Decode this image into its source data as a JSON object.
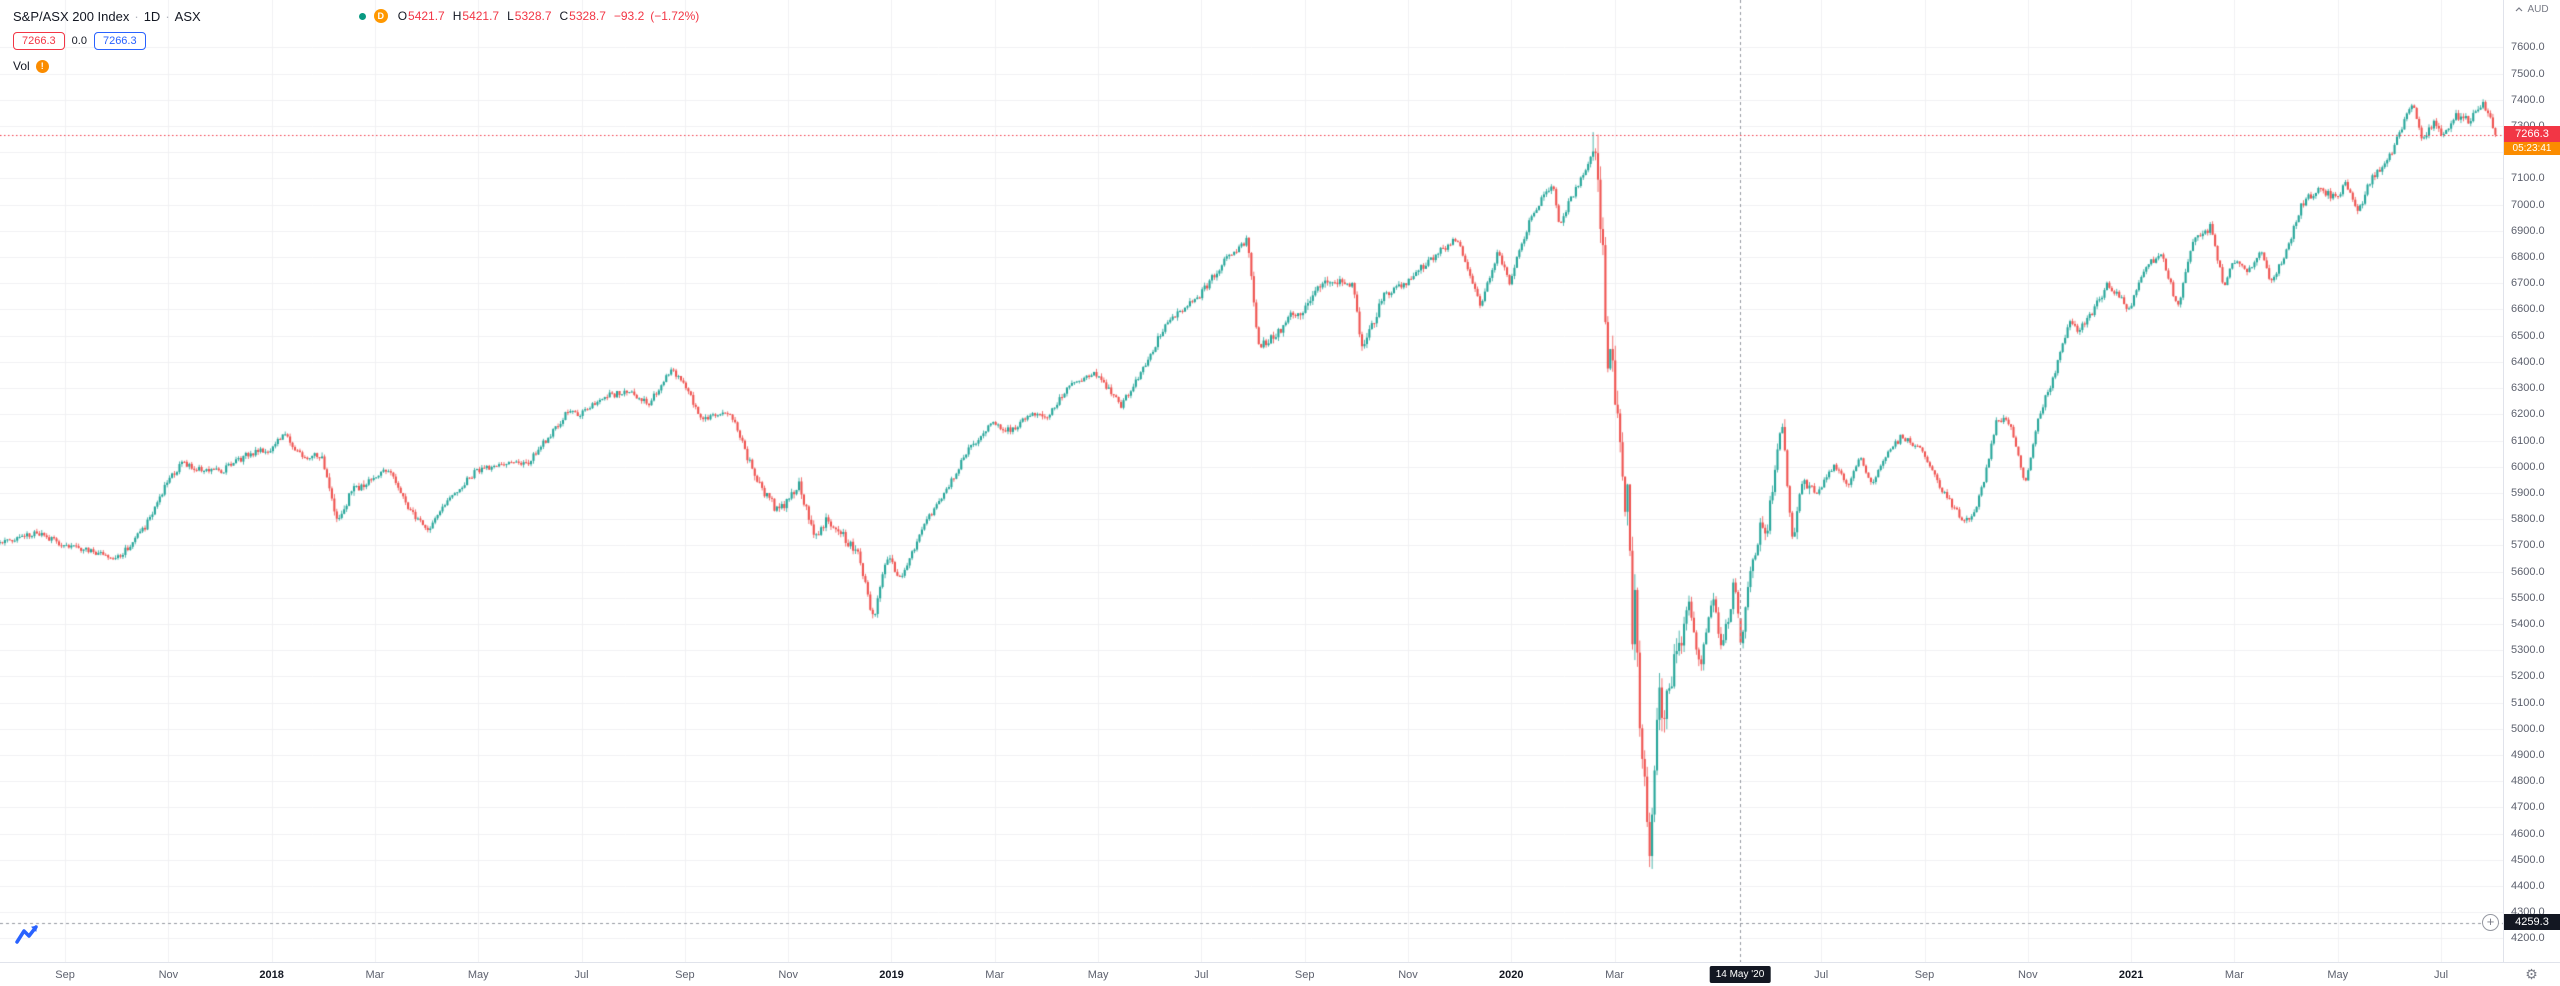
{
  "header": {
    "symbol": "S&P/ASX 200 Index",
    "separator": "·",
    "interval": "1D",
    "exchange": "ASX",
    "delayed_badge": "D",
    "ohlc": {
      "labels": {
        "o": "O",
        "h": "H",
        "l": "L",
        "c": "C"
      },
      "values": {
        "o": "5421.7",
        "h": "5421.7",
        "l": "5328.7",
        "c": "5328.7"
      },
      "change": "−93.2",
      "change_pct": "(−1.72%)"
    },
    "sell_price": "7266.3",
    "spread": "0.0",
    "buy_price": "7266.3",
    "vol_label": "Vol",
    "vol_warning": "!"
  },
  "price_axis": {
    "currency": "AUD",
    "last_price": "7266.3",
    "countdown": "05:23:41",
    "crosshair_price": "4259.3",
    "plus_label": "+",
    "gear_icon": "⚙"
  },
  "time_axis": {
    "crosshair_date": "14 May '20"
  },
  "colors": {
    "up": "#26a69a",
    "down": "#ef5350",
    "last_price_line": "#f23645",
    "countdown_bg": "#fb8c00",
    "crosshair_badge_bg": "#131722",
    "buy": "#2962ff",
    "sell": "#f23645",
    "grid": "#f0f1f3",
    "crosshair_line": "#9598a1",
    "axis_text": "#5d616e"
  },
  "chart_data": {
    "type": "candlestick",
    "title": "S&P/ASX 200 Index",
    "interval": "1D",
    "exchange": "ASX",
    "currency": "AUD",
    "last_close": 7266.3,
    "crosshair": {
      "date": "14 May '20",
      "price": 4259.3,
      "month_pos": 33.43,
      "ohlc": {
        "open": 5421.7,
        "high": 5421.7,
        "low": 5328.7,
        "close": 5328.7,
        "change": -93.2,
        "change_pct": -1.72
      }
    },
    "price_axis": {
      "label_min": 4200,
      "label_max": 7600,
      "step": 100,
      "visible_min": 4110,
      "visible_max": 7781
    },
    "time_axis": {
      "origin": "months from Aug 2017",
      "visible_min": -0.26,
      "visible_max": 48.2,
      "data_end": 48.1,
      "labels": [
        {
          "text": "Sep",
          "m": 1
        },
        {
          "text": "Nov",
          "m": 3
        },
        {
          "text": "2018",
          "m": 5,
          "year": true
        },
        {
          "text": "Mar",
          "m": 7
        },
        {
          "text": "May",
          "m": 9
        },
        {
          "text": "Jul",
          "m": 11
        },
        {
          "text": "Sep",
          "m": 13
        },
        {
          "text": "Nov",
          "m": 15
        },
        {
          "text": "2019",
          "m": 17,
          "year": true
        },
        {
          "text": "Mar",
          "m": 19
        },
        {
          "text": "May",
          "m": 21
        },
        {
          "text": "Jul",
          "m": 23
        },
        {
          "text": "Sep",
          "m": 25
        },
        {
          "text": "Nov",
          "m": 27
        },
        {
          "text": "2020",
          "m": 29,
          "year": true
        },
        {
          "text": "Mar",
          "m": 31
        },
        {
          "text": "Jul",
          "m": 35
        },
        {
          "text": "Sep",
          "m": 37
        },
        {
          "text": "Nov",
          "m": 39
        },
        {
          "text": "2021",
          "m": 41,
          "year": true
        },
        {
          "text": "Mar",
          "m": 43
        },
        {
          "text": "May",
          "m": 45
        },
        {
          "text": "Jul",
          "m": 47
        }
      ]
    },
    "series_anchors": {
      "description": "approximate daily-close trajectory; x = months from Aug 2017, y = index points",
      "points": [
        [
          -0.26,
          5712
        ],
        [
          0.5,
          5748
        ],
        [
          1.0,
          5705
        ],
        [
          1.6,
          5672
        ],
        [
          2.1,
          5655
        ],
        [
          2.6,
          5770
        ],
        [
          3.0,
          5930
        ],
        [
          3.3,
          6014
        ],
        [
          3.7,
          5986
        ],
        [
          4.1,
          5985
        ],
        [
          4.6,
          6050
        ],
        [
          5.0,
          6065
        ],
        [
          5.3,
          6120
        ],
        [
          5.65,
          6037
        ],
        [
          6.0,
          6050
        ],
        [
          6.3,
          5790
        ],
        [
          6.6,
          5905
        ],
        [
          7.0,
          5950
        ],
        [
          7.3,
          5996
        ],
        [
          7.75,
          5825
        ],
        [
          8.1,
          5760
        ],
        [
          8.5,
          5880
        ],
        [
          9.0,
          5983
        ],
        [
          9.5,
          6015
        ],
        [
          10.0,
          6012
        ],
        [
          10.45,
          6125
        ],
        [
          10.8,
          6215
        ],
        [
          11.0,
          6195
        ],
        [
          11.5,
          6275
        ],
        [
          12.0,
          6280
        ],
        [
          12.35,
          6240
        ],
        [
          12.8,
          6373
        ],
        [
          13.0,
          6320
        ],
        [
          13.4,
          6180
        ],
        [
          13.8,
          6215
        ],
        [
          14.0,
          6185
        ],
        [
          14.45,
          5935
        ],
        [
          14.85,
          5830
        ],
        [
          15.1,
          5880
        ],
        [
          15.25,
          5945
        ],
        [
          15.55,
          5725
        ],
        [
          15.8,
          5795
        ],
        [
          16.05,
          5750
        ],
        [
          16.4,
          5665
        ],
        [
          16.7,
          5415
        ],
        [
          16.9,
          5600
        ],
        [
          17.0,
          5646
        ],
        [
          17.25,
          5570
        ],
        [
          17.7,
          5795
        ],
        [
          18.0,
          5865
        ],
        [
          18.5,
          6055
        ],
        [
          19.0,
          6170
        ],
        [
          19.35,
          6135
        ],
        [
          19.8,
          6205
        ],
        [
          20.0,
          6180
        ],
        [
          20.5,
          6305
        ],
        [
          21.0,
          6360
        ],
        [
          21.3,
          6285
        ],
        [
          21.5,
          6235
        ],
        [
          22.0,
          6405
        ],
        [
          22.35,
          6545
        ],
        [
          23.0,
          6650
        ],
        [
          23.5,
          6785
        ],
        [
          23.95,
          6870
        ],
        [
          24.15,
          6460
        ],
        [
          24.5,
          6505
        ],
        [
          24.8,
          6585
        ],
        [
          25.0,
          6580
        ],
        [
          25.4,
          6705
        ],
        [
          25.8,
          6715
        ],
        [
          26.0,
          6690
        ],
        [
          26.15,
          6455
        ],
        [
          26.6,
          6655
        ],
        [
          27.0,
          6700
        ],
        [
          27.5,
          6795
        ],
        [
          27.9,
          6860
        ],
        [
          28.05,
          6845
        ],
        [
          28.45,
          6615
        ],
        [
          28.8,
          6825
        ],
        [
          29.0,
          6700
        ],
        [
          29.45,
          6965
        ],
        [
          29.85,
          7090
        ],
        [
          29.97,
          6917
        ],
        [
          30.2,
          7020
        ],
        [
          30.65,
          7197
        ],
        [
          30.78,
          6970
        ],
        [
          30.9,
          6441
        ],
        [
          31.0,
          6376
        ],
        [
          31.13,
          6120
        ],
        [
          31.26,
          5761
        ],
        [
          31.32,
          5940
        ],
        [
          31.38,
          5304
        ],
        [
          31.45,
          5539
        ],
        [
          31.52,
          5002
        ],
        [
          31.6,
          4870
        ],
        [
          31.67,
          4680
        ],
        [
          31.73,
          4465
        ],
        [
          31.8,
          4750
        ],
        [
          31.88,
          5113
        ],
        [
          32.0,
          5077
        ],
        [
          32.2,
          5255
        ],
        [
          32.5,
          5490
        ],
        [
          32.7,
          5220
        ],
        [
          32.95,
          5522
        ],
        [
          33.08,
          5320
        ],
        [
          33.25,
          5405
        ],
        [
          33.36,
          5560
        ],
        [
          33.45,
          5422
        ],
        [
          33.49,
          5329
        ],
        [
          33.63,
          5535
        ],
        [
          33.85,
          5760
        ],
        [
          34.0,
          5756
        ],
        [
          34.28,
          6198
        ],
        [
          34.48,
          5720
        ],
        [
          34.7,
          5945
        ],
        [
          35.0,
          5898
        ],
        [
          35.3,
          6015
        ],
        [
          35.55,
          5920
        ],
        [
          35.8,
          6045
        ],
        [
          36.0,
          5930
        ],
        [
          36.3,
          6040
        ],
        [
          36.6,
          6115
        ],
        [
          37.0,
          6060
        ],
        [
          37.35,
          5925
        ],
        [
          37.8,
          5790
        ],
        [
          38.0,
          5815
        ],
        [
          38.2,
          5945
        ],
        [
          38.45,
          6180
        ],
        [
          38.7,
          6170
        ],
        [
          39.0,
          5928
        ],
        [
          39.25,
          6190
        ],
        [
          39.55,
          6345
        ],
        [
          39.85,
          6560
        ],
        [
          40.0,
          6517
        ],
        [
          40.3,
          6590
        ],
        [
          40.6,
          6700
        ],
        [
          40.85,
          6640
        ],
        [
          41.0,
          6587
        ],
        [
          41.2,
          6705
        ],
        [
          41.4,
          6780
        ],
        [
          41.65,
          6800
        ],
        [
          41.95,
          6607
        ],
        [
          42.25,
          6860
        ],
        [
          42.6,
          6917
        ],
        [
          42.85,
          6673
        ],
        [
          43.0,
          6789
        ],
        [
          43.3,
          6745
        ],
        [
          43.55,
          6827
        ],
        [
          43.75,
          6710
        ],
        [
          44.0,
          6791
        ],
        [
          44.35,
          7000
        ],
        [
          44.65,
          7060
        ],
        [
          45.0,
          7026
        ],
        [
          45.2,
          7075
        ],
        [
          45.45,
          6970
        ],
        [
          45.7,
          7105
        ],
        [
          46.0,
          7162
        ],
        [
          46.3,
          7295
        ],
        [
          46.5,
          7395
        ],
        [
          46.68,
          7240
        ],
        [
          46.9,
          7310
        ],
        [
          47.1,
          7270
        ],
        [
          47.35,
          7340
        ],
        [
          47.6,
          7322
        ],
        [
          47.85,
          7392
        ],
        [
          48.0,
          7340
        ],
        [
          48.1,
          7266.3
        ]
      ]
    }
  }
}
